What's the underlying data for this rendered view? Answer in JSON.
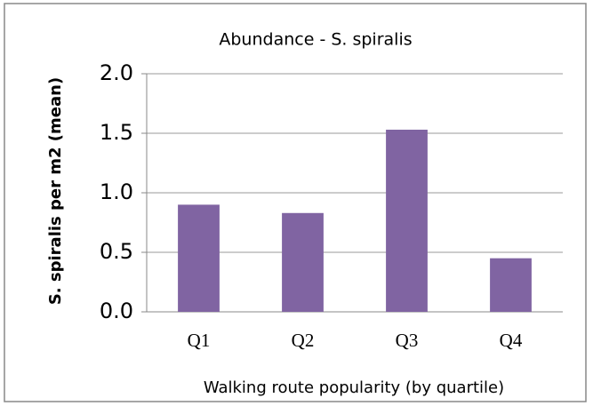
{
  "chart_data": {
    "type": "bar",
    "title": "Abundance - S. spiralis",
    "x_label": "Walking route popularity (by quartile)",
    "y_label": "S. spiralis per m2 (mean)",
    "categories": [
      "Q1",
      "Q2",
      "Q3",
      "Q4"
    ],
    "values": [
      0.9,
      0.83,
      1.53,
      0.45
    ],
    "color": "#8064a2",
    "ylim": [
      0,
      2
    ],
    "yticks": [
      {
        "value": 0,
        "label": "0.0"
      },
      0.5,
      {
        "value": 1,
        "label": "1.0"
      },
      1.5,
      {
        "value": 2,
        "label": "2.0"
      }
    ],
    "grid": true
  }
}
